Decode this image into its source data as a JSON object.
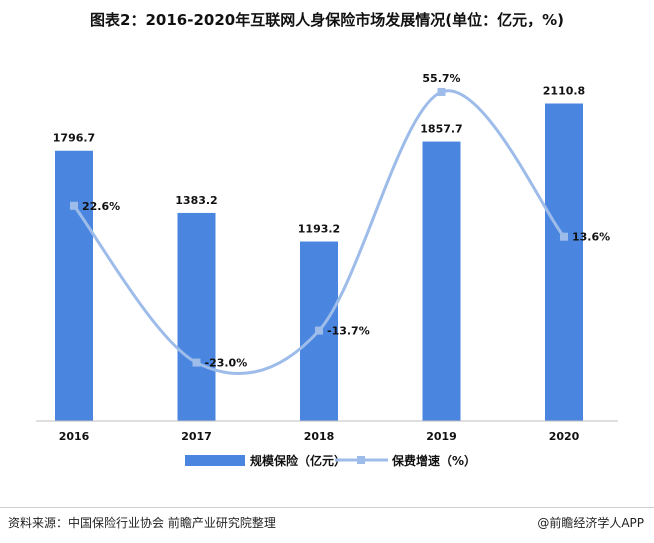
{
  "title": "图表2：2016-2020年互联网人身保险市场发展情况(单位：亿元，%)",
  "colors": {
    "bar": "#4a86df",
    "line": "#9ebcea",
    "marker": "#9ebcea",
    "axis": "#bfbfbf",
    "text": "#111111"
  },
  "chart_data": {
    "type": "bar",
    "categories": [
      "2016",
      "2017",
      "2018",
      "2019",
      "2020"
    ],
    "series": [
      {
        "name": "规模保险（亿元）",
        "type": "bar",
        "axis": "left",
        "values": [
          1796.7,
          1383.2,
          1193.2,
          1857.7,
          2110.8
        ],
        "labels": [
          "1796.7",
          "1383.2",
          "1193.2",
          "1857.7",
          "2110.8"
        ]
      },
      {
        "name": "保费增速（%）",
        "type": "line",
        "axis": "right",
        "smooth": true,
        "values": [
          22.6,
          -23.0,
          -13.7,
          55.7,
          13.6
        ],
        "labels": [
          "22.6%",
          "-23.0%",
          "-13.7%",
          "55.7%",
          "13.6%"
        ]
      }
    ],
    "ylim_left": [
      0,
      2400
    ],
    "ylim_right": [
      -40,
      65
    ],
    "grid": false,
    "legend": "bottom"
  },
  "legend": {
    "bar_label": "规模保险（亿元）",
    "line_label": "保费增速（%）"
  },
  "footer": {
    "source": "资料来源：中国保险行业协会 前瞻产业研究院整理",
    "brand": "@前瞻经济学人APP"
  }
}
